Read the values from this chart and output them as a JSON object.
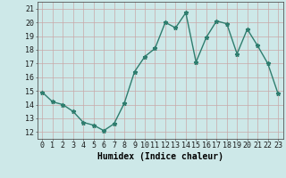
{
  "x": [
    0,
    1,
    2,
    3,
    4,
    5,
    6,
    7,
    8,
    9,
    10,
    11,
    12,
    13,
    14,
    15,
    16,
    17,
    18,
    19,
    20,
    21,
    22,
    23
  ],
  "y": [
    14.9,
    14.2,
    14.0,
    13.5,
    12.7,
    12.5,
    12.1,
    12.6,
    14.1,
    16.4,
    17.5,
    18.1,
    20.0,
    19.6,
    20.7,
    17.1,
    18.9,
    20.1,
    19.9,
    17.7,
    19.5,
    18.3,
    17.0,
    14.8
  ],
  "line_color": "#2e7d6e",
  "marker": "*",
  "marker_size": 3.5,
  "bg_color": "#cde8e8",
  "grid_color": "#b8d8d8",
  "xlabel": "Humidex (Indice chaleur)",
  "ylabel_ticks": [
    12,
    13,
    14,
    15,
    16,
    17,
    18,
    19,
    20,
    21
  ],
  "xtick_labels": [
    "0",
    "1",
    "2",
    "3",
    "4",
    "5",
    "6",
    "7",
    "8",
    "9",
    "10",
    "11",
    "12",
    "13",
    "14",
    "15",
    "16",
    "17",
    "18",
    "19",
    "20",
    "21",
    "22",
    "23"
  ],
  "xlim": [
    -0.5,
    23.5
  ],
  "ylim": [
    11.5,
    21.5
  ],
  "xlabel_fontsize": 7,
  "tick_fontsize": 6,
  "line_width": 1.0
}
